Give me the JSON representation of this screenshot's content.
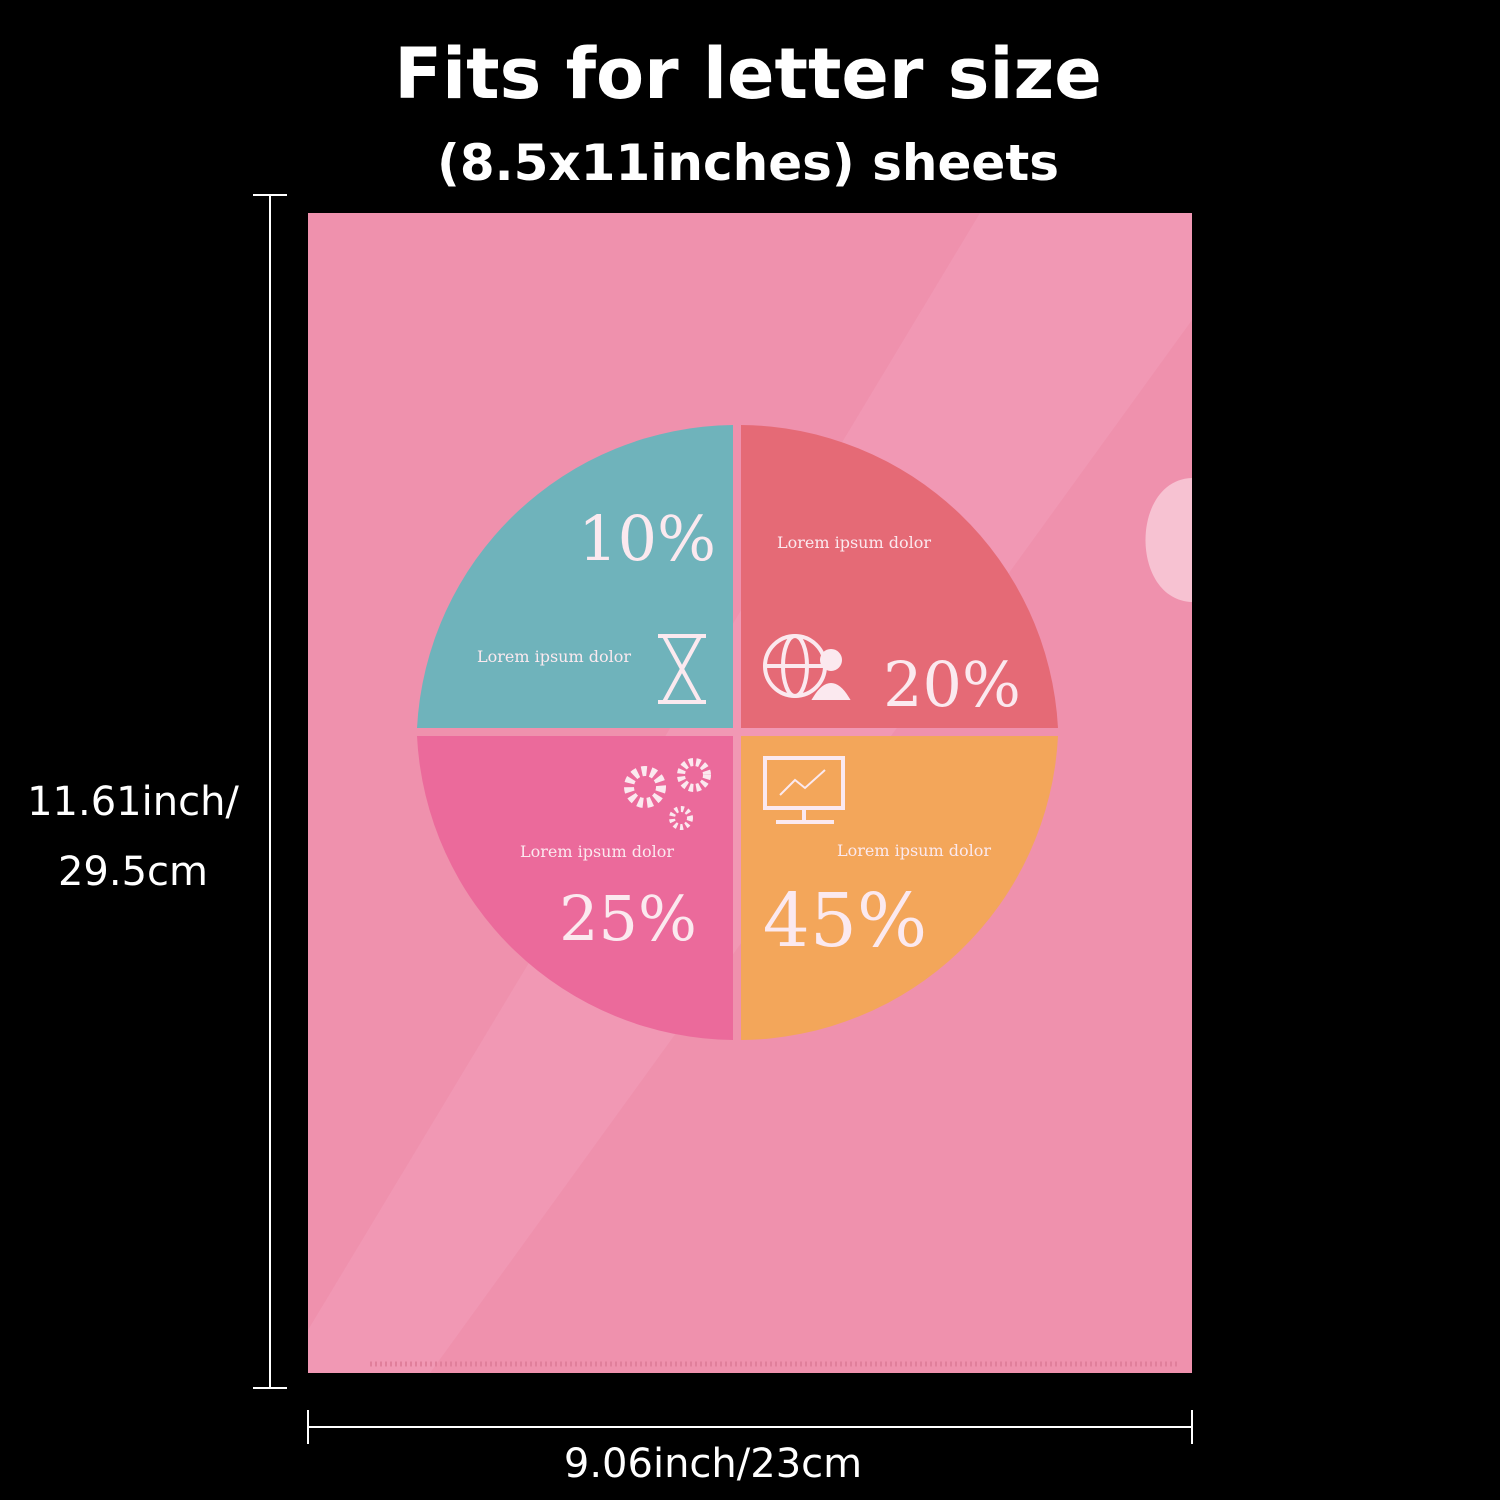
{
  "header": {
    "title": "Fits for letter size",
    "subtitle": "(8.5x11inches) sheets"
  },
  "dimensions": {
    "height_inch": "11.61inch/",
    "height_cm": "29.5cm",
    "width": "9.06inch/23cm"
  },
  "infographic": {
    "quadrants": [
      {
        "percent": "10%",
        "caption": "Lorem ipsum dolor"
      },
      {
        "percent": "20%",
        "caption": "Lorem ipsum dolor"
      },
      {
        "percent": "25%",
        "caption": "Lorem ipsum dolor"
      },
      {
        "percent": "45%",
        "caption": "Lorem ipsum dolor"
      }
    ]
  }
}
